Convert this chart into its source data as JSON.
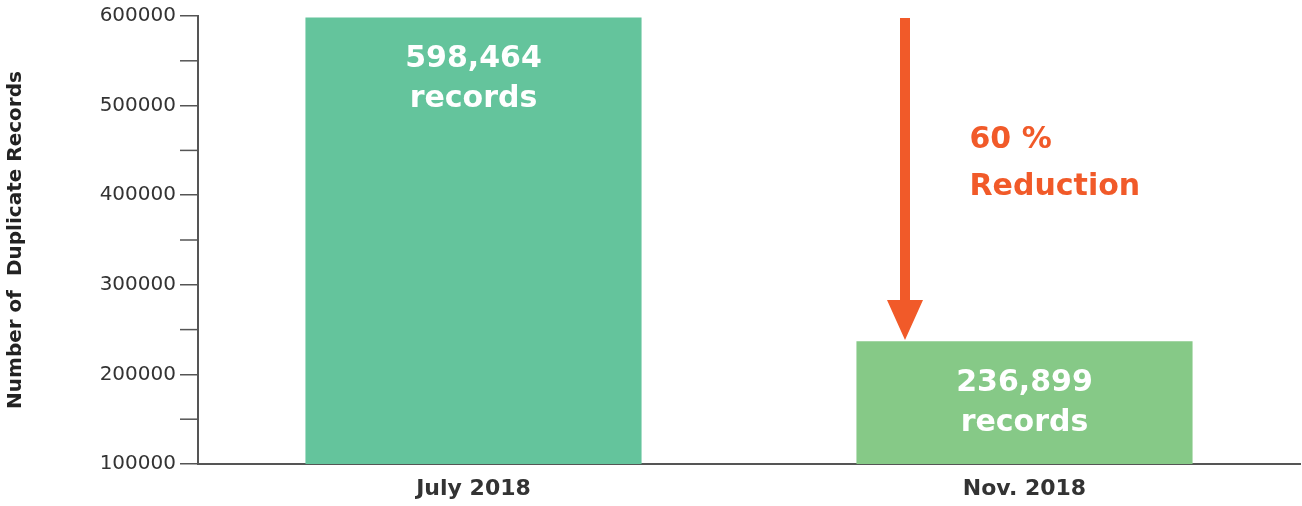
{
  "chart_data": {
    "type": "bar",
    "ylabel": "Number of  Duplicate Records",
    "categories": [
      "July 2018",
      "Nov. 2018"
    ],
    "values": [
      598464,
      236899
    ],
    "colors": [
      "#64c49c",
      "#86c987"
    ],
    "value_labels": [
      "598,464\nrecords",
      "236,899\nrecords"
    ],
    "annotations": [
      "60 %\nReduction"
    ],
    "ylim": [
      100000,
      600000
    ],
    "yticks": [
      100000,
      200000,
      300000,
      400000,
      500000,
      600000
    ],
    "grid": false,
    "legend": false
  }
}
